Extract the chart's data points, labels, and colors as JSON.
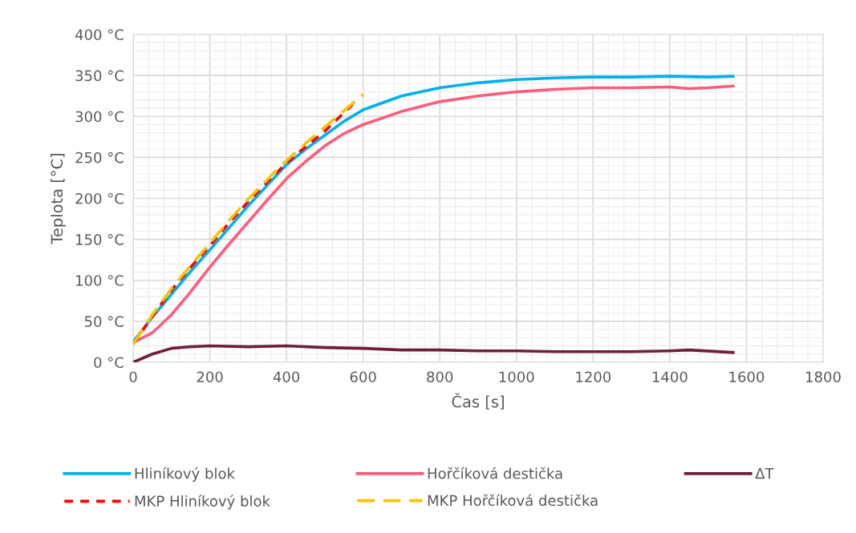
{
  "chart_data": {
    "type": "line",
    "xlabel": "Čas [s]",
    "ylabel": "Teplota [°C]",
    "xlim": [
      0,
      1800
    ],
    "xticks": [
      0,
      200,
      400,
      600,
      800,
      1000,
      1200,
      1400,
      1600,
      1800
    ],
    "ylim": [
      0,
      400
    ],
    "yticks": [
      {
        "value": 0,
        "label": "0 °C"
      },
      {
        "value": 50,
        "label": "50 °C"
      },
      {
        "value": 100,
        "label": "100 °C"
      },
      {
        "value": 150,
        "label": "150 °C"
      },
      {
        "value": 200,
        "label": "200 °C"
      },
      {
        "value": 250,
        "label": "250 °C"
      },
      {
        "value": 300,
        "label": "300 °C"
      },
      {
        "value": 350,
        "label": "350 °C"
      },
      {
        "value": 400,
        "label": "400 °C"
      }
    ],
    "grid": true,
    "legend": "bottom",
    "marker": "none",
    "series": [
      {
        "name": "Hliníkový blok",
        "color": "#00b0f0",
        "line_style": "solid",
        "x": [
          0,
          50,
          100,
          150,
          200,
          250,
          300,
          350,
          400,
          450,
          500,
          550,
          600,
          700,
          800,
          900,
          1000,
          1100,
          1200,
          1300,
          1400,
          1500,
          1565
        ],
        "values": [
          25,
          55,
          83,
          111,
          137,
          164,
          191,
          216,
          241,
          260,
          277,
          294,
          308,
          325,
          335,
          341,
          345,
          347,
          348,
          348,
          349,
          348,
          349
        ]
      },
      {
        "name": "Hořčíková destička",
        "color": "#ff5b7a",
        "line_style": "solid",
        "x": [
          0,
          50,
          100,
          150,
          200,
          250,
          300,
          350,
          400,
          450,
          500,
          550,
          600,
          700,
          800,
          900,
          1000,
          1100,
          1200,
          1300,
          1400,
          1450,
          1500,
          1565
        ],
        "values": [
          24,
          36,
          58,
          86,
          116,
          144,
          171,
          198,
          224,
          245,
          264,
          279,
          290,
          306,
          318,
          325,
          330,
          333,
          335,
          335,
          336,
          334,
          335,
          337
        ]
      },
      {
        "name": "ΔT",
        "color": "#6e1f3c",
        "line_style": "solid",
        "x": [
          0,
          50,
          100,
          150,
          200,
          300,
          400,
          500,
          600,
          700,
          800,
          900,
          1000,
          1100,
          1200,
          1300,
          1400,
          1450,
          1565
        ],
        "values": [
          0,
          10,
          17,
          19,
          20,
          19,
          20,
          18,
          17,
          15,
          15,
          14,
          14,
          13,
          13,
          13,
          14,
          15,
          12
        ]
      },
      {
        "name": "MKP Hliníkový blok",
        "color": "#ff0000",
        "line_style": "dotted",
        "x": [
          0,
          50,
          100,
          150,
          200,
          250,
          300,
          350,
          400,
          450,
          500,
          573
        ],
        "values": [
          22,
          56,
          88,
          116,
          142,
          170,
          196,
          220,
          243,
          263,
          282,
          315
        ]
      },
      {
        "name": "MKP Hořčíková destička",
        "color": "#ffc000",
        "line_style": "dashed",
        "x": [
          0,
          50,
          100,
          150,
          200,
          250,
          300,
          350,
          400,
          450,
          500,
          550,
          600
        ],
        "values": [
          22,
          58,
          90,
          118,
          145,
          173,
          199,
          223,
          246,
          267,
          287,
          307,
          327
        ]
      }
    ]
  }
}
